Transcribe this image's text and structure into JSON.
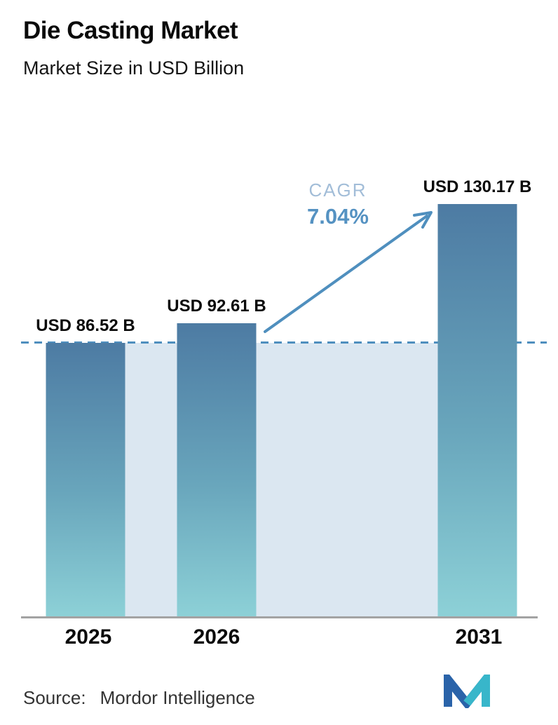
{
  "header": {
    "title": "Die Casting Market",
    "subtitle": "Market Size in USD Billion"
  },
  "chart_data": {
    "type": "bar",
    "title": "Die Casting Market",
    "subtitle": "Market Size in USD Billion",
    "categories": [
      "2025",
      "2026",
      "2031"
    ],
    "values": [
      86.52,
      92.61,
      130.17
    ],
    "bar_labels": [
      "USD 86.52 B",
      "USD 92.61 B",
      "USD 130.17 B"
    ],
    "ylim": [
      0,
      130.17
    ],
    "grid": false,
    "legend": "none",
    "annotations": {
      "cagr_label": "CAGR",
      "cagr_value": "7.04%",
      "reference_line_value": 86.52,
      "reference_line_style": "dashed"
    }
  },
  "footer": {
    "source_label": "Source:",
    "source_value": "Mordor Intelligence",
    "logo_icon": "mordor-intelligence-m-logo"
  },
  "colors": {
    "bar_gradient_top": "#4d7ba3",
    "bar_gradient_bottom": "#8dd1d7",
    "band_fill": "#dbe7f1",
    "dashed_line": "#4f8fbe",
    "arrow": "#4f8fbe",
    "cagr_label_text": "#a2bdd8",
    "cagr_value_text": "#5592c2",
    "axis_line": "#a3a3a3",
    "text": "#0a0a0a",
    "logo_blue": "#2a63a9",
    "logo_teal": "#38b6ca"
  }
}
